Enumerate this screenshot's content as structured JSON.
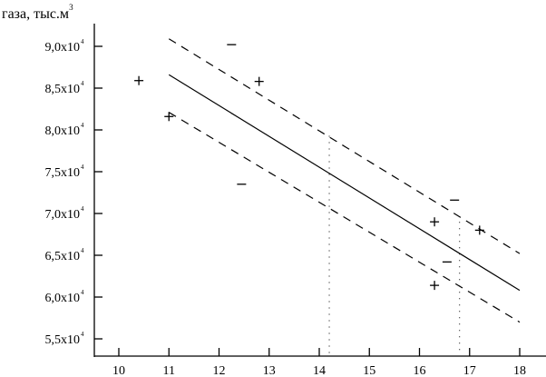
{
  "chart_data": {
    "type": "scatter",
    "title": "",
    "ylabel": "газа, тыс.м",
    "ylabel_sup": "3",
    "xlabel": "",
    "xlim": [
      9.55,
      18.55
    ],
    "ylim": [
      5.28,
      9.43
    ],
    "x_ticks": [
      10,
      11,
      12,
      13,
      14,
      15,
      16,
      17,
      18
    ],
    "x_tick_labels": [
      "10",
      "11",
      "12",
      "13",
      "14",
      "15",
      "16",
      "17",
      "18"
    ],
    "y_ticks": [
      9.0,
      8.5,
      8.0,
      7.5,
      7.0,
      6.5,
      6.0,
      5.5
    ],
    "y_tick_labels": [
      "9,0x10",
      "8,5x10",
      "8,0x10",
      "7,5x10",
      "7,0x10",
      "6,5x10",
      "6,0x10",
      "5,5x10"
    ],
    "y_tick_exponent": "4",
    "grid": false,
    "series": [
      {
        "name": "plus-points",
        "marker": "+",
        "points": [
          [
            10.4,
            8.59
          ],
          [
            11.0,
            8.16
          ],
          [
            12.8,
            8.58
          ],
          [
            16.3,
            6.9
          ],
          [
            17.2,
            6.8
          ],
          [
            16.3,
            6.14
          ]
        ]
      },
      {
        "name": "minus-points",
        "marker": "−",
        "points": [
          [
            12.25,
            9.02
          ],
          [
            12.45,
            7.35
          ],
          [
            16.7,
            7.16
          ],
          [
            16.55,
            6.42
          ]
        ]
      },
      {
        "name": "regression-line",
        "style": "solid",
        "points": [
          [
            11,
            8.66
          ],
          [
            18,
            6.08
          ]
        ]
      },
      {
        "name": "upper-bound",
        "style": "dashed",
        "points": [
          [
            11,
            9.09
          ],
          [
            18,
            6.52
          ]
        ]
      },
      {
        "name": "lower-bound",
        "style": "dashed",
        "points": [
          [
            11,
            8.21
          ],
          [
            18,
            5.7
          ]
        ]
      }
    ],
    "vertical_markers": [
      {
        "x": 14.2,
        "y_top": 7.93,
        "style": "dotted"
      },
      {
        "x": 16.8,
        "y_top": 6.9,
        "style": "dotted"
      }
    ]
  }
}
